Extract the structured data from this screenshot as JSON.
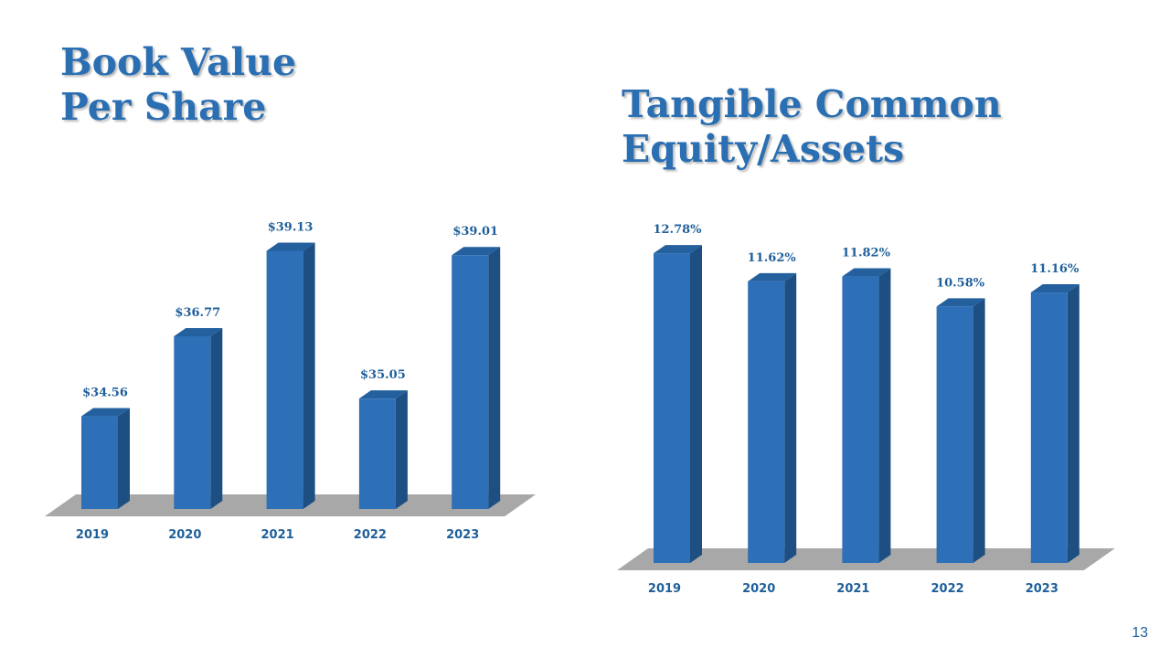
{
  "slide": {
    "page_number": "13"
  },
  "colors": {
    "title": "#2b6fb3",
    "bar_front": "#2e70b8",
    "bar_side": "#1d4f82",
    "bar_top": "#24609e",
    "floor": "#a8a8a8",
    "label": "#1f5f9a"
  },
  "chart_data": [
    {
      "type": "bar",
      "style": "3d-column",
      "title_lines": [
        "Book Value",
        "Per Share"
      ],
      "categories": [
        "2019",
        "2020",
        "2021",
        "2022",
        "2023"
      ],
      "values": [
        34.56,
        36.77,
        39.13,
        35.05,
        39.01
      ],
      "data_labels": [
        "$34.56",
        "$36.77",
        "$39.13",
        "$35.05",
        "$39.01"
      ],
      "ylim": [
        32,
        40
      ],
      "grid": false,
      "legend": "none"
    },
    {
      "type": "bar",
      "style": "3d-column",
      "title_lines": [
        "Tangible Common",
        "Equity/Assets"
      ],
      "categories": [
        "2019",
        "2020",
        "2021",
        "2022",
        "2023"
      ],
      "values": [
        12.78,
        11.62,
        11.82,
        10.58,
        11.16
      ],
      "data_labels": [
        "12.78%",
        "11.62%",
        "11.82%",
        "10.58%",
        "11.16%"
      ],
      "ylim": [
        0,
        13.5
      ],
      "grid": false,
      "legend": "none"
    }
  ]
}
